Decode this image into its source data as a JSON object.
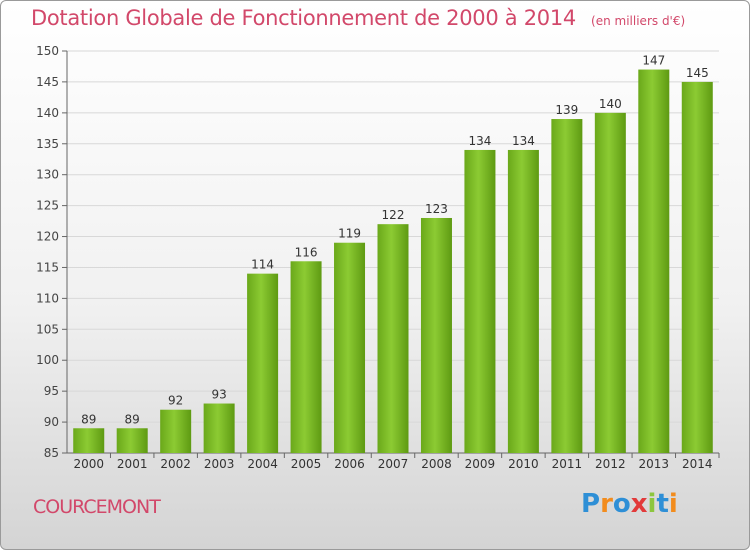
{
  "chart_data": {
    "type": "bar",
    "title": "Dotation Globale de Fonctionnement de 2000 à 2014",
    "subtitle": "(en milliers d'€)",
    "categories": [
      "2000",
      "2001",
      "2002",
      "2003",
      "2004",
      "2005",
      "2006",
      "2007",
      "2008",
      "2009",
      "2010",
      "2011",
      "2012",
      "2013",
      "2014"
    ],
    "values": [
      89,
      89,
      92,
      93,
      114,
      116,
      119,
      122,
      123,
      134,
      134,
      139,
      140,
      147,
      145
    ],
    "ylim": [
      85,
      150
    ],
    "yticks": [
      85,
      90,
      95,
      100,
      105,
      110,
      115,
      120,
      125,
      130,
      135,
      140,
      145,
      150
    ],
    "xlabel": "",
    "ylabel": "",
    "grid": true,
    "bar_color": "#7cbc24"
  },
  "commune": "COURCEMONT",
  "brand": {
    "name": "Proxiti",
    "letters": [
      {
        "ch": "P",
        "color": "#2e8fd6"
      },
      {
        "ch": "r",
        "color": "#f28c1d"
      },
      {
        "ch": "o",
        "color": "#2e8fd6"
      },
      {
        "ch": "x",
        "color": "#e23a3a"
      },
      {
        "ch": "i",
        "color": "#8cc63e"
      },
      {
        "ch": "t",
        "color": "#2e8fd6"
      },
      {
        "ch": "i",
        "color": "#f28c1d"
      }
    ]
  }
}
